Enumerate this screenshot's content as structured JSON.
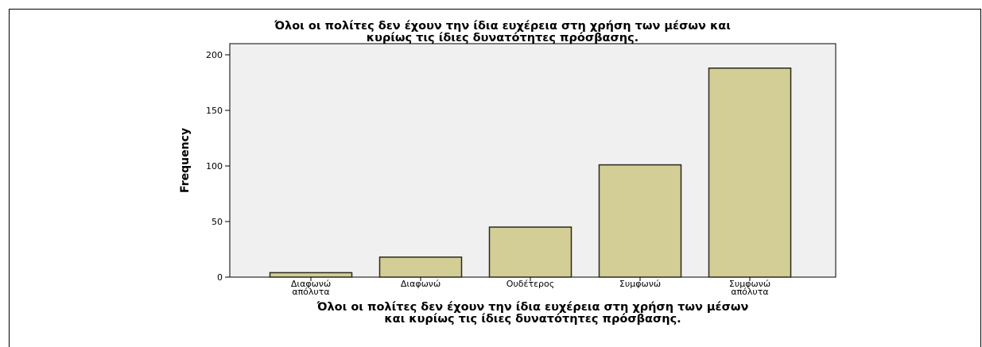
{
  "chart_data": {
    "type": "bar",
    "title": [
      "Όλοι οι πολίτες δεν έχουν την ίδια ευχέρεια στη χρήση των μέσων και",
      "κυρίως τις ίδιες δυνατότητες πρόσβασης."
    ],
    "xlabel": [
      "Όλοι οι πολίτες δεν έχουν την ίδια ευχέρεια στη χρήση των μέσων",
      "και κυρίως τις ίδιες δυνατότητες πρόσβασης."
    ],
    "ylabel": "Frequency",
    "categories": [
      [
        "Διαφωνώ",
        "απόλυτα"
      ],
      [
        "Διαφωνώ"
      ],
      [
        "Ουδέτερος"
      ],
      [
        "Συμφωνώ"
      ],
      [
        "Συμφωνώ",
        "απόλυτα"
      ]
    ],
    "values": [
      4,
      18,
      45,
      101,
      188
    ],
    "ylim": [
      0,
      200
    ],
    "yticks": [
      0,
      50,
      100,
      150,
      200
    ],
    "grid": false,
    "colors": {
      "bar_fill": "#d3ce96",
      "bar_stroke": "#2a2a1a",
      "plot_bg": "#f0f0f0",
      "axis": "#000000"
    }
  }
}
